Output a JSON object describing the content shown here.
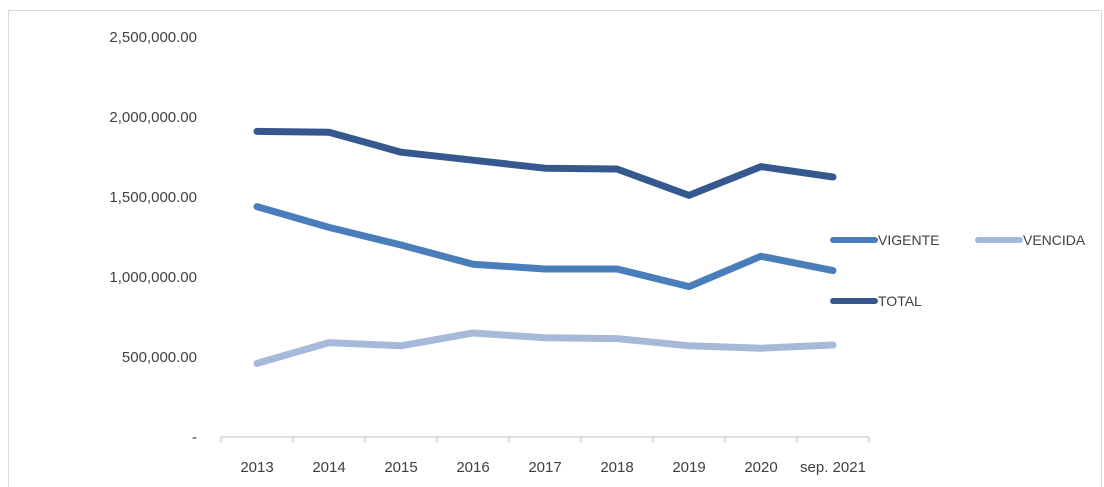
{
  "chart_data": {
    "type": "line",
    "title": "",
    "xlabel": "",
    "ylabel": "",
    "categories": [
      "2013",
      "2014",
      "2015",
      "2016",
      "2017",
      "2018",
      "2019",
      "2020",
      "sep. 2021"
    ],
    "ylim": [
      0,
      2500000
    ],
    "y_ticks": [
      0,
      500000,
      1000000,
      1500000,
      2000000,
      2500000
    ],
    "y_tick_labels": [
      "-",
      "500,000.00",
      "1,000,000.00",
      "1,500,000.00",
      "2,000,000.00",
      "2,500,000.00"
    ],
    "grid": false,
    "legend_position": "right",
    "series": [
      {
        "name": "VIGENTE",
        "color": "#4a7ebb",
        "values": [
          1440000,
          1310000,
          1200000,
          1080000,
          1050000,
          1050000,
          940000,
          1130000,
          1040000
        ]
      },
      {
        "name": "VENCIDA",
        "color": "#a7b9d8",
        "values": [
          460000,
          590000,
          570000,
          650000,
          620000,
          615000,
          570000,
          555000,
          575000
        ]
      },
      {
        "name": "TOTAL",
        "color": "#35598f",
        "values": [
          1910000,
          1905000,
          1780000,
          1730000,
          1680000,
          1675000,
          1510000,
          1690000,
          1625000
        ]
      }
    ]
  }
}
